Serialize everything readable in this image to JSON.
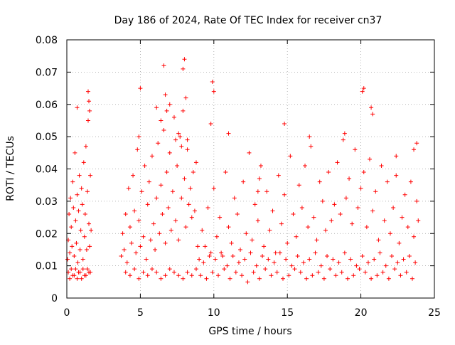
{
  "chart_data": {
    "type": "scatter",
    "title": "Day 186 of 2024, Rate Of TEC Index for receiver cn37",
    "xlabel": "GPS time / hours",
    "ylabel": "ROTI / TECUs",
    "xlim": [
      0,
      25
    ],
    "ylim": [
      0,
      0.08
    ],
    "xticks": [
      0,
      5,
      10,
      15,
      20,
      25
    ],
    "yticks": [
      0,
      0.01,
      0.02,
      0.03,
      0.04,
      0.05,
      0.06,
      0.07,
      0.08
    ],
    "xtick_labels": [
      "0",
      "5",
      "10",
      "15",
      "20",
      "25"
    ],
    "ytick_labels": [
      "0",
      "0.01",
      "0.02",
      "0.03",
      "0.04",
      "0.05",
      "0.06",
      "0.07",
      "0.08"
    ],
    "grid": true,
    "marker": "+",
    "color": "#ff0000",
    "data_gap_hours": [
      1.7,
      3.6
    ],
    "series": [
      {
        "x": [
          0.05,
          0.1,
          0.15,
          0.2,
          0.25,
          0.3,
          0.35,
          0.4,
          0.45,
          0.5,
          0.55,
          0.6,
          0.65,
          0.7,
          0.75,
          0.8,
          0.85,
          0.9,
          0.95,
          1.0,
          1.05,
          1.1,
          1.15,
          1.2,
          1.25,
          1.3,
          1.35,
          1.4,
          1.45,
          1.5,
          1.55,
          1.6,
          1.65,
          0.1,
          0.3,
          0.5,
          0.7,
          0.9,
          1.1,
          1.3,
          1.5,
          0.2,
          0.4,
          0.6,
          0.8,
          1.0,
          1.2,
          1.4,
          1.6,
          0.7,
          1.45,
          1.55,
          1.5,
          3.7,
          3.8,
          3.9,
          4.0,
          4.1,
          4.2,
          4.3,
          4.4,
          4.5,
          4.6,
          4.7,
          4.8,
          4.9,
          5.0,
          5.1,
          5.2,
          5.3,
          5.4,
          5.5,
          5.6,
          5.7,
          5.8,
          5.9,
          6.0,
          6.1,
          6.2,
          6.3,
          6.4,
          6.5,
          6.6,
          6.7,
          6.8,
          6.9,
          7.0,
          7.1,
          7.2,
          7.3,
          7.4,
          7.5,
          7.6,
          7.7,
          7.8,
          7.9,
          8.0,
          8.1,
          8.2,
          8.3,
          8.4,
          8.5,
          8.6,
          8.7,
          8.8,
          8.9,
          4.0,
          4.3,
          4.6,
          4.9,
          5.2,
          5.5,
          5.8,
          6.1,
          6.4,
          6.7,
          7.0,
          7.3,
          7.6,
          7.9,
          8.2,
          8.5,
          8.8,
          4.9,
          5.0,
          6.1,
          6.4,
          6.6,
          6.7,
          6.8,
          7.9,
          8.0,
          8.1,
          7.0,
          7.4,
          7.6,
          7.8,
          8.2,
          9.0,
          9.2,
          9.4,
          9.6,
          9.8,
          10.0,
          10.2,
          10.4,
          10.6,
          10.8,
          11.0,
          11.2,
          11.4,
          11.6,
          11.8,
          12.0,
          12.2,
          12.4,
          12.6,
          12.8,
          13.0,
          13.2,
          13.4,
          13.6,
          13.8,
          14.0,
          14.2,
          14.4,
          14.6,
          14.8,
          15.0,
          15.2,
          15.4,
          15.6,
          15.8,
          16.0,
          16.2,
          16.4,
          16.6,
          16.8,
          17.0,
          17.2,
          17.4,
          17.6,
          17.8,
          18.0,
          18.2,
          18.4,
          18.6,
          18.8,
          19.0,
          19.2,
          19.4,
          19.6,
          19.8,
          20.0,
          20.2,
          20.4,
          20.6,
          20.8,
          21.0,
          21.2,
          21.4,
          21.6,
          21.8,
          22.0,
          22.2,
          22.4,
          22.6,
          22.8,
          23.0,
          23.2,
          23.4,
          23.6,
          23.8,
          23.9,
          9.1,
          9.5,
          9.9,
          10.3,
          10.7,
          11.1,
          11.5,
          11.9,
          12.3,
          12.7,
          13.1,
          13.5,
          13.9,
          14.3,
          14.7,
          15.1,
          15.5,
          15.9,
          16.3,
          16.7,
          17.1,
          17.5,
          17.9,
          18.3,
          18.7,
          19.1,
          19.5,
          19.9,
          20.3,
          20.7,
          21.1,
          21.5,
          21.9,
          22.3,
          22.7,
          23.1,
          23.5,
          9.3,
          9.7,
          10.1,
          10.5,
          10.9,
          11.3,
          11.7,
          12.1,
          12.5,
          12.9,
          13.3,
          13.7,
          14.1,
          14.5,
          14.9,
          15.3,
          15.7,
          16.1,
          16.5,
          16.9,
          17.3,
          17.7,
          18.1,
          18.5,
          18.9,
          19.3,
          19.7,
          20.1,
          20.5,
          20.9,
          21.3,
          21.7,
          22.1,
          22.5,
          22.9,
          23.3,
          23.7,
          9.8,
          9.9,
          10.0,
          11.0,
          14.8,
          16.5,
          18.9,
          20.1,
          20.2,
          20.7,
          20.8,
          23.6,
          23.8,
          22.4,
          13.1,
          13.0
        ],
        "y": [
          0.012,
          0.018,
          0.026,
          0.014,
          0.031,
          0.022,
          0.016,
          0.036,
          0.028,
          0.013,
          0.045,
          0.024,
          0.017,
          0.032,
          0.011,
          0.027,
          0.038,
          0.015,
          0.021,
          0.034,
          0.029,
          0.012,
          0.042,
          0.019,
          0.026,
          0.047,
          0.015,
          0.033,
          0.055,
          0.023,
          0.016,
          0.038,
          0.021,
          0.008,
          0.009,
          0.007,
          0.006,
          0.008,
          0.009,
          0.007,
          0.008,
          0.006,
          0.007,
          0.009,
          0.008,
          0.006,
          0.007,
          0.009,
          0.008,
          0.059,
          0.064,
          0.058,
          0.061,
          0.013,
          0.02,
          0.015,
          0.026,
          0.011,
          0.034,
          0.022,
          0.017,
          0.038,
          0.027,
          0.014,
          0.046,
          0.024,
          0.016,
          0.033,
          0.019,
          0.041,
          0.012,
          0.029,
          0.036,
          0.018,
          0.044,
          0.023,
          0.015,
          0.031,
          0.048,
          0.02,
          0.035,
          0.026,
          0.052,
          0.017,
          0.039,
          0.028,
          0.045,
          0.021,
          0.033,
          0.056,
          0.024,
          0.041,
          0.018,
          0.05,
          0.031,
          0.058,
          0.037,
          0.022,
          0.046,
          0.029,
          0.034,
          0.025,
          0.039,
          0.027,
          0.042,
          0.016,
          0.008,
          0.007,
          0.009,
          0.006,
          0.008,
          0.007,
          0.009,
          0.008,
          0.006,
          0.007,
          0.009,
          0.008,
          0.007,
          0.006,
          0.008,
          0.007,
          0.009,
          0.05,
          0.065,
          0.059,
          0.055,
          0.072,
          0.063,
          0.058,
          0.071,
          0.074,
          0.062,
          0.06,
          0.049,
          0.051,
          0.047,
          0.049,
          0.012,
          0.021,
          0.016,
          0.028,
          0.014,
          0.034,
          0.019,
          0.025,
          0.013,
          0.039,
          0.022,
          0.017,
          0.031,
          0.026,
          0.015,
          0.036,
          0.02,
          0.045,
          0.018,
          0.029,
          0.024,
          0.041,
          0.016,
          0.033,
          0.021,
          0.027,
          0.014,
          0.038,
          0.023,
          0.032,
          0.017,
          0.044,
          0.026,
          0.019,
          0.035,
          0.028,
          0.041,
          0.022,
          0.047,
          0.025,
          0.018,
          0.036,
          0.03,
          0.021,
          0.039,
          0.024,
          0.029,
          0.042,
          0.026,
          0.049,
          0.031,
          0.037,
          0.023,
          0.046,
          0.028,
          0.034,
          0.039,
          0.022,
          0.043,
          0.027,
          0.033,
          0.018,
          0.041,
          0.024,
          0.036,
          0.02,
          0.028,
          0.038,
          0.017,
          0.025,
          0.032,
          0.022,
          0.036,
          0.019,
          0.03,
          0.024,
          0.007,
          0.006,
          0.008,
          0.007,
          0.009,
          0.006,
          0.008,
          0.007,
          0.005,
          0.008,
          0.006,
          0.009,
          0.007,
          0.008,
          0.006,
          0.007,
          0.009,
          0.008,
          0.006,
          0.007,
          0.008,
          0.006,
          0.009,
          0.007,
          0.008,
          0.006,
          0.007,
          0.009,
          0.008,
          0.006,
          0.007,
          0.008,
          0.006,
          0.009,
          0.007,
          0.008,
          0.006,
          0.011,
          0.013,
          0.012,
          0.014,
          0.01,
          0.013,
          0.011,
          0.012,
          0.014,
          0.01,
          0.013,
          0.012,
          0.011,
          0.014,
          0.012,
          0.01,
          0.013,
          0.011,
          0.012,
          0.014,
          0.01,
          0.013,
          0.012,
          0.011,
          0.014,
          0.012,
          0.01,
          0.013,
          0.011,
          0.012,
          0.014,
          0.01,
          0.013,
          0.011,
          0.012,
          0.013,
          0.011,
          0.054,
          0.067,
          0.064,
          0.051,
          0.054,
          0.05,
          0.051,
          0.064,
          0.065,
          0.059,
          0.057,
          0.046,
          0.048,
          0.044,
          0.037,
          0.033
        ]
      }
    ]
  }
}
